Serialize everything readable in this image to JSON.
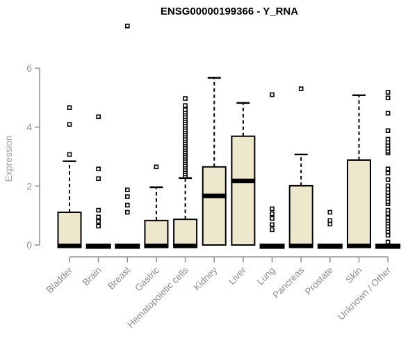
{
  "style": {
    "background": "#FFFFFF",
    "box_fill": "#EDE7CB",
    "box_border": "#000000",
    "median_color": "#000000",
    "whisker_color": "#000000",
    "outlier_stroke": "#000000",
    "outlier_fill": "#FFFFFF",
    "axis_color": "#8F959B",
    "tick_label_color": "#8F959B",
    "category_label_color": "#8C8C8C",
    "ylabel_color": "#A5A5A5",
    "title_color": "#000000"
  },
  "chart_data": {
    "type": "boxplot",
    "title": "ENSG00000199366 - Y_RNA",
    "ylabel": "Expression",
    "xlabel": "",
    "ylim": [
      0,
      6
    ],
    "yticks": [
      0,
      2,
      4,
      6
    ],
    "grid": false,
    "legend": false,
    "categories": [
      "Bladder",
      "Brain",
      "Breast",
      "Gastric",
      "Hematopoietic cells",
      "Kidney",
      "Liver",
      "Lung",
      "Pancreas",
      "Prostate",
      "Skin",
      "Unknown / Other"
    ],
    "series": [
      {
        "name": "Bladder",
        "q1": 0,
        "median": 0,
        "q3": 1.11,
        "whisker_low": 0,
        "whisker_high": 2.84,
        "outliers": [
          3.07,
          4.09,
          4.66
        ]
      },
      {
        "name": "Brain",
        "q1": 0,
        "median": 0,
        "q3": 0,
        "whisker_low": 0,
        "whisker_high": 0,
        "outliers": [
          0.64,
          0.8,
          0.95,
          1.18,
          2.25,
          2.58,
          4.35
        ]
      },
      {
        "name": "Breast",
        "q1": 0,
        "median": 0,
        "q3": 0,
        "whisker_low": 0,
        "whisker_high": 0,
        "outliers": [
          1.11,
          1.35,
          1.64,
          1.87,
          7.43
        ]
      },
      {
        "name": "Gastric",
        "q1": 0,
        "median": 0,
        "q3": 0.83,
        "whisker_low": 0,
        "whisker_high": 1.96,
        "outliers": [
          2.65
        ]
      },
      {
        "name": "Hematopoietic cells",
        "q1": 0,
        "median": 0,
        "q3": 0.87,
        "whisker_low": 0,
        "whisker_high": 2.27,
        "outliers": [
          2.34,
          2.41,
          2.49,
          2.56,
          2.64,
          2.71,
          2.79,
          2.86,
          2.94,
          3.01,
          3.09,
          3.16,
          3.24,
          3.31,
          3.39,
          3.46,
          3.54,
          3.61,
          3.69,
          3.76,
          3.84,
          3.91,
          3.99,
          4.06,
          4.14,
          4.21,
          4.29,
          4.36,
          4.44,
          4.51,
          4.59,
          4.73,
          4.97
        ]
      },
      {
        "name": "Kidney",
        "q1": 0,
        "median": 1.67,
        "q3": 2.65,
        "whisker_low": 0,
        "whisker_high": 5.67,
        "outliers": []
      },
      {
        "name": "Liver",
        "q1": 0,
        "median": 2.18,
        "q3": 3.69,
        "whisker_low": 0,
        "whisker_high": 4.82,
        "outliers": []
      },
      {
        "name": "Lung",
        "q1": 0,
        "median": 0,
        "q3": 0,
        "whisker_low": 0,
        "whisker_high": 0,
        "outliers": [
          0.52,
          0.69,
          0.9,
          1.06,
          1.23,
          5.1
        ]
      },
      {
        "name": "Pancreas",
        "q1": 0,
        "median": 0,
        "q3": 2.01,
        "whisker_low": 0,
        "whisker_high": 3.07,
        "outliers": [
          5.3
        ]
      },
      {
        "name": "Prostate",
        "q1": 0,
        "median": 0,
        "q3": 0,
        "whisker_low": 0,
        "whisker_high": 0,
        "outliers": [
          0.71,
          0.83,
          1.11
        ]
      },
      {
        "name": "Skin",
        "q1": 0,
        "median": 0,
        "q3": 2.88,
        "whisker_low": 0,
        "whisker_high": 5.08,
        "outliers": []
      },
      {
        "name": "Unknown / Other",
        "q1": 0,
        "median": 0,
        "q3": 0,
        "whisker_low": 0,
        "whisker_high": 0,
        "outliers": [
          0.1,
          0.33,
          0.45,
          0.55,
          0.64,
          0.74,
          0.83,
          0.92,
          1.07,
          1.18,
          1.4,
          1.47,
          1.58,
          1.68,
          1.78,
          1.89,
          2.01,
          2.22,
          2.44,
          2.58,
          3.12,
          3.18,
          3.28,
          3.38,
          3.48,
          3.59,
          3.88,
          4.47,
          4.99,
          5.18
        ]
      }
    ]
  }
}
